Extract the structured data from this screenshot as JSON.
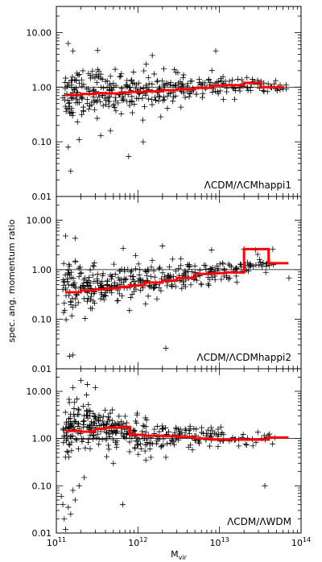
{
  "chart_data": {
    "type": "scatter",
    "xlabel": "M",
    "xlabel_sub": "vir",
    "ylabel": "spec. ang. momentum ratio",
    "xscale": "log",
    "yscale": "log",
    "xlim": [
      100000000000.0,
      100000000000000.0
    ],
    "ylim": [
      0.01,
      30
    ],
    "reference_line": 1.0,
    "x_tick_labels": [
      {
        "value": 100000000000.0,
        "base": "10",
        "exp": "11"
      },
      {
        "value": 1000000000000.0,
        "base": "10",
        "exp": "12"
      },
      {
        "value": 10000000000000.0,
        "base": "10",
        "exp": "13"
      },
      {
        "value": 100000000000000.0,
        "base": "10",
        "exp": "14"
      }
    ],
    "y_tick_labels": [
      {
        "value": 10,
        "text": "10.00"
      },
      {
        "value": 1,
        "text": "1.00"
      },
      {
        "value": 0.1,
        "text": "0.10"
      },
      {
        "value": 0.01,
        "text": "0.01"
      }
    ],
    "colors": {
      "scatter": "#000000",
      "median": "#ff0000",
      "axes": "#000000"
    },
    "panels": [
      {
        "label": "ΛCDM/ΛCMhappi1",
        "median_step": {
          "edges": [
            130000000000.0,
            200000000000.0,
            300000000000.0,
            400000000000.0,
            600000000000.0,
            800000000000.0,
            1200000000000.0,
            2000000000000.0,
            3000000000000.0,
            5000000000000.0,
            8000000000000.0,
            12000000000000.0,
            20000000000000.0,
            32000000000000.0,
            42000000000000.0,
            62000000000000.0
          ],
          "values": [
            0.72,
            0.75,
            0.78,
            0.77,
            0.8,
            0.82,
            0.84,
            0.88,
            0.92,
            0.97,
            1.07,
            1.09,
            1.2,
            1.0,
            1.0
          ]
        },
        "scatter": {
          "center": [
            [
              120000000000.0,
              0.75
            ],
            [
              160000000000.0,
              0.78
            ],
            [
              230000000000.0,
              0.8
            ],
            [
              320000000000.0,
              0.8
            ],
            [
              450000000000.0,
              0.82
            ],
            [
              650000000000.0,
              0.85
            ],
            [
              900000000000.0,
              0.87
            ],
            [
              1300000000000.0,
              0.88
            ],
            [
              1900000000000.0,
              0.9
            ],
            [
              2800000000000.0,
              0.92
            ],
            [
              4000000000000.0,
              0.95
            ],
            [
              6000000000000.0,
              0.97
            ],
            [
              8500000000000.0,
              1.0
            ],
            [
              12000000000000.0,
              1.05
            ],
            [
              18000000000000.0,
              1.1
            ],
            [
              26000000000000.0,
              1.05
            ],
            [
              36000000000000.0,
              1.0
            ],
            [
              50000000000000.0,
              1.0
            ]
          ],
          "spread_dex": [
            0.42,
            0.4,
            0.38,
            0.36,
            0.34,
            0.32,
            0.3,
            0.28,
            0.26,
            0.24,
            0.22,
            0.2,
            0.18,
            0.16,
            0.15,
            0.14,
            0.14,
            0.12
          ],
          "outliers": [
            [
              140000000000.0,
              6.3
            ],
            [
              160000000000.0,
              4.6
            ],
            [
              140000000000.0,
              0.08
            ],
            [
              150000000000.0,
              0.029
            ],
            [
              190000000000.0,
              0.11
            ],
            [
              210000000000.0,
              0.009
            ],
            [
              320000000000.0,
              4.7
            ],
            [
              350000000000.0,
              0.13
            ],
            [
              460000000000.0,
              0.16
            ],
            [
              770000000000.0,
              0.054
            ],
            [
              1160000000000.0,
              0.1
            ],
            [
              1500000000000.0,
              3.8
            ],
            [
              9000000000000.0,
              4.6
            ],
            [
              3800000000000.0,
              0.65
            ],
            [
              7000000000000.0,
              1.0
            ],
            [
              1150000000000.0,
              0.25
            ]
          ]
        }
      },
      {
        "label": "ΛCDM/ΛCDMhappi2",
        "median_step": {
          "edges": [
            130000000000.0,
            200000000000.0,
            300000000000.0,
            400000000000.0,
            600000000000.0,
            800000000000.0,
            1200000000000.0,
            2000000000000.0,
            3000000000000.0,
            5000000000000.0,
            8000000000000.0,
            12000000000000.0,
            20000000000000.0,
            40000000000000.0,
            70000000000000.0
          ],
          "values": [
            0.35,
            0.38,
            0.4,
            0.42,
            0.45,
            0.48,
            0.55,
            0.6,
            0.68,
            0.82,
            0.85,
            0.88,
            2.6,
            1.35
          ]
        },
        "scatter": {
          "center": [
            [
              120000000000.0,
              0.38
            ],
            [
              160000000000.0,
              0.4
            ],
            [
              230000000000.0,
              0.42
            ],
            [
              320000000000.0,
              0.44
            ],
            [
              450000000000.0,
              0.47
            ],
            [
              650000000000.0,
              0.5
            ],
            [
              900000000000.0,
              0.55
            ],
            [
              1300000000000.0,
              0.6
            ],
            [
              1900000000000.0,
              0.65
            ],
            [
              2800000000000.0,
              0.7
            ],
            [
              4000000000000.0,
              0.76
            ],
            [
              6000000000000.0,
              0.82
            ],
            [
              8500000000000.0,
              0.88
            ],
            [
              12000000000000.0,
              0.9
            ],
            [
              18000000000000.0,
              1.0
            ],
            [
              26000000000000.0,
              1.4
            ],
            [
              36000000000000.0,
              1.2
            ]
          ],
          "spread_dex": [
            0.45,
            0.43,
            0.41,
            0.39,
            0.37,
            0.35,
            0.32,
            0.3,
            0.28,
            0.26,
            0.24,
            0.22,
            0.2,
            0.18,
            0.16,
            0.15,
            0.14
          ],
          "outliers": [
            [
              130000000000.0,
              4.8
            ],
            [
              145000000000.0,
              0.018
            ],
            [
              160000000000.0,
              0.019
            ],
            [
              170000000000.0,
              4.3
            ],
            [
              240000000000.0,
              0.23
            ],
            [
              420000000000.0,
              0.5
            ],
            [
              660000000000.0,
              2.7
            ],
            [
              2000000000000.0,
              3.0
            ],
            [
              2200000000000.0,
              0.026
            ],
            [
              8000000000000.0,
              2.5
            ],
            [
              20000000000000.0,
              2.6
            ],
            [
              45000000000000.0,
              2.6
            ],
            [
              71000000000000.0,
              0.68
            ],
            [
              12200000000000.0,
              0.75
            ],
            [
              200000000000.0,
              0.45
            ],
            [
              280000000000.0,
              1.2
            ]
          ]
        }
      },
      {
        "label": "ΛCDM/ΛWDM",
        "median_step": {
          "edges": [
            130000000000.0,
            200000000000.0,
            300000000000.0,
            400000000000.0,
            600000000000.0,
            800000000000.0,
            1200000000000.0,
            2000000000000.0,
            3000000000000.0,
            5000000000000.0,
            8000000000000.0,
            12000000000000.0,
            20000000000000.0,
            40000000000000.0,
            70000000000000.0
          ],
          "values": [
            1.45,
            1.4,
            1.6,
            1.7,
            1.75,
            1.2,
            1.15,
            1.12,
            1.08,
            1.0,
            0.95,
            0.95,
            0.95,
            1.05
          ]
        },
        "scatter": {
          "center": [
            [
              120000000000.0,
              1.3
            ],
            [
              150000000000.0,
              1.6
            ],
            [
              200000000000.0,
              1.9
            ],
            [
              260000000000.0,
              2.0
            ],
            [
              340000000000.0,
              1.9
            ],
            [
              450000000000.0,
              1.7
            ],
            [
              600000000000.0,
              1.5
            ],
            [
              800000000000.0,
              1.3
            ],
            [
              1100000000000.0,
              1.2
            ],
            [
              1500000000000.0,
              1.15
            ],
            [
              2200000000000.0,
              1.1
            ],
            [
              3200000000000.0,
              1.05
            ],
            [
              4600000000000.0,
              1.0
            ],
            [
              6500000000000.0,
              1.0
            ],
            [
              9000000000000.0,
              1.0
            ],
            [
              13000000000000.0,
              0.98
            ],
            [
              20000000000000.0,
              0.95
            ],
            [
              35000000000000.0,
              1.0
            ]
          ],
          "spread_dex": [
            0.5,
            0.48,
            0.45,
            0.42,
            0.4,
            0.38,
            0.36,
            0.34,
            0.32,
            0.3,
            0.28,
            0.26,
            0.24,
            0.22,
            0.2,
            0.18,
            0.16,
            0.14
          ],
          "outliers": [
            [
              115000000000.0,
              0.06
            ],
            [
              120000000000.0,
              0.04
            ],
            [
              125000000000.0,
              0.02
            ],
            [
              130000000000.0,
              0.012
            ],
            [
              140000000000.0,
              0.035
            ],
            [
              150000000000.0,
              0.025
            ],
            [
              160000000000.0,
              0.08
            ],
            [
              170000000000.0,
              0.05
            ],
            [
              190000000000.0,
              0.1
            ],
            [
              220000000000.0,
              0.15
            ],
            [
              200000000000.0,
              17
            ],
            [
              240000000000.0,
              14
            ],
            [
              300000000000.0,
              12
            ],
            [
              160000000000.0,
              12
            ],
            [
              500000000000.0,
              0.3
            ],
            [
              550000000000.0,
              0.75
            ],
            [
              650000000000.0,
              0.04
            ],
            [
              2500000000000.0,
              0.8
            ],
            [
              36000000000000.0,
              0.1
            ],
            [
              2200000000000.0,
              0.4
            ],
            [
              1250000000000.0,
              0.35
            ],
            [
              1400000000000.0,
              0.6
            ]
          ]
        }
      }
    ]
  }
}
